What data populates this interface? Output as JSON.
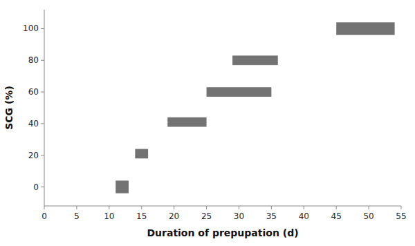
{
  "chart_data": {
    "type": "rect",
    "xlabel": "Duration of prepupation (d)",
    "ylabel": "SCG (%)",
    "xlim": [
      0,
      55
    ],
    "ylim": [
      -12,
      112
    ],
    "xticks": [
      0,
      5,
      10,
      15,
      20,
      25,
      30,
      35,
      40,
      45,
      50,
      55
    ],
    "yticks": [
      0,
      20,
      40,
      60,
      80,
      100
    ],
    "color": "#737373",
    "x_min": [
      11,
      14,
      19,
      25,
      29,
      45
    ],
    "x_max": [
      13,
      16,
      25,
      35,
      36,
      54
    ],
    "y_min": [
      -4,
      18,
      38,
      57,
      77,
      96
    ],
    "y_max": [
      4,
      24,
      44,
      63,
      83,
      104
    ]
  }
}
